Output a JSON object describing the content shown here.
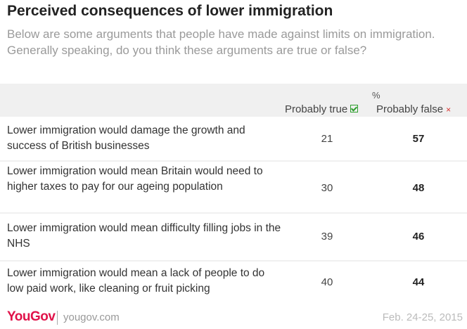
{
  "chart_data": {
    "type": "table",
    "title": "Perceived consequences of lower immigration",
    "subtitle": "Below are some arguments that people have made against limits on immigration. Generally speaking, do you think these arguments are true or false?",
    "unit_label": "%",
    "columns": [
      "Probably true",
      "Probably false"
    ],
    "rows": [
      {
        "label": "Lower immigration would damage the growth and success of British businesses",
        "probably_true": 21,
        "probably_false": 57
      },
      {
        "label": "Lower immigration would mean Britain would need to higher taxes to pay for our ageing population",
        "probably_true": 30,
        "probably_false": 48
      },
      {
        "label": "Lower immigration would mean difficulty filling jobs in the NHS",
        "probably_true": 39,
        "probably_false": 46
      },
      {
        "label": "Lower immigration would mean a lack of people to do low paid work, like cleaning or fruit picking",
        "probably_true": 40,
        "probably_false": 44
      }
    ]
  },
  "icons": {
    "true_icon": "check-box-icon",
    "false_icon": "cross-icon"
  },
  "cross_glyph": "×",
  "footer": {
    "brand": "YouGov",
    "site": "yougov.com",
    "date": "Feb. 24-25, 2015"
  },
  "colors": {
    "brand": "#e0134a",
    "check": "#2e9e2e",
    "cross": "#d9302c"
  }
}
